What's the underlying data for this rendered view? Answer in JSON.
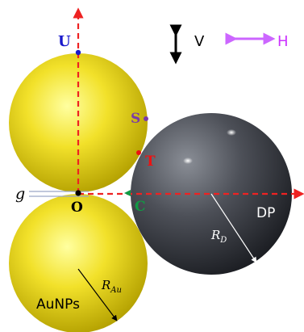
{
  "legend": {
    "vertical_label": "V",
    "horizontal_label": "H",
    "vertical_color": "#000000",
    "horizontal_color": "#cc66ff"
  },
  "points": {
    "U": {
      "label": "U",
      "color": "#1a1acc"
    },
    "S": {
      "label": "S",
      "color": "#7a3aa8"
    },
    "T": {
      "label": "T",
      "color": "#ee1111"
    },
    "C": {
      "label": "C",
      "color": "#119944"
    },
    "O": {
      "label": "O",
      "color": "#000000"
    }
  },
  "gap_label": "g",
  "dielectric_particle": {
    "label": "DP",
    "radius_label_main": "R",
    "radius_label_sub": "D"
  },
  "gold_nanoparticles": {
    "label": "AuNPs",
    "radius_label_main": "R",
    "radius_label_sub": "Au"
  },
  "colors": {
    "axis_dashed": "#ee2222",
    "gold_light": "#ffffa0",
    "gold_mid": "#f2e12a",
    "gold_dark": "#b3a000",
    "dp_light": "#8a8e96",
    "dp_mid": "#4d5058",
    "dp_dark": "#1b1d22"
  }
}
